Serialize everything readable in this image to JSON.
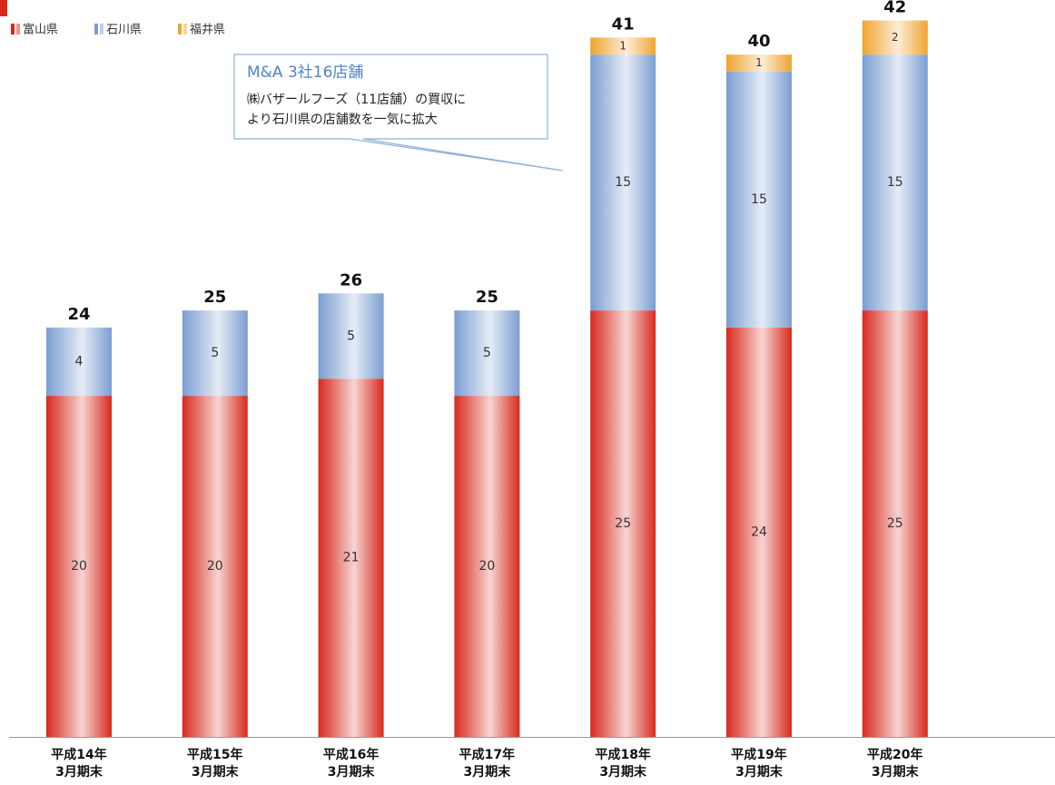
{
  "chart_data": {
    "type": "stacked_bar",
    "categories": [
      [
        "平成14年",
        "3月期末"
      ],
      [
        "平成15年",
        "3月期末"
      ],
      [
        "平成16年",
        "3月期末"
      ],
      [
        "平成17年",
        "3月期末"
      ],
      [
        "平成18年",
        "3月期末"
      ],
      [
        "平成19年",
        "3月期末"
      ],
      [
        "平成20年",
        "3月期末"
      ]
    ],
    "series": [
      {
        "name": "富山県",
        "color": "#d8291d",
        "values": [
          20,
          20,
          21,
          20,
          25,
          24,
          25
        ]
      },
      {
        "name": "石川県",
        "color": "#7b9ed0",
        "values": [
          4,
          5,
          5,
          5,
          15,
          15,
          15
        ]
      },
      {
        "name": "福井県",
        "color": "#f0a431",
        "values": [
          null,
          null,
          null,
          null,
          1,
          1,
          2
        ]
      }
    ],
    "totals": [
      24,
      25,
      26,
      25,
      41,
      40,
      42
    ],
    "ylim": [
      0,
      43.2
    ],
    "annotation": {
      "title": "M&A 3社16店舗",
      "lines": [
        "㈱バザールフーズ（11店舗）の買収に",
        "より石川県の店舗数を一気に拡大"
      ]
    }
  }
}
